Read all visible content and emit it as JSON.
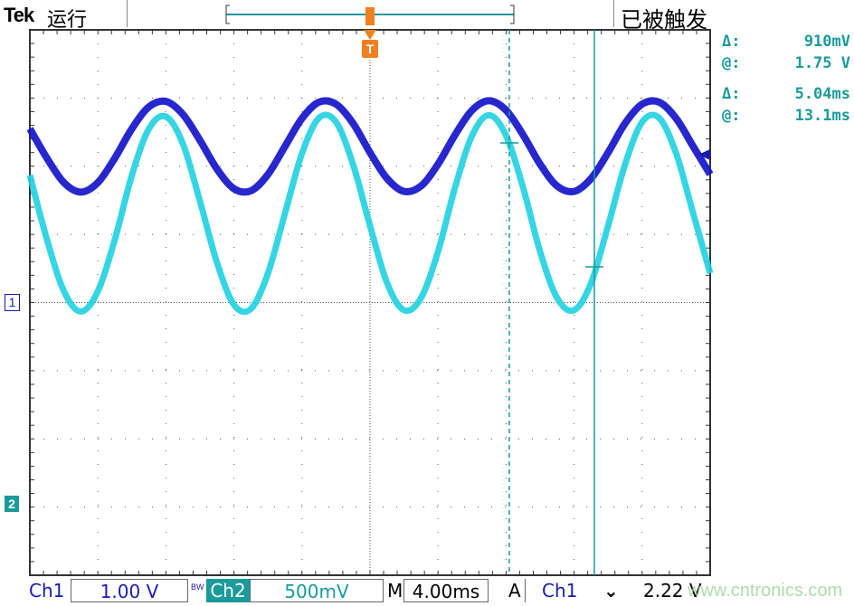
{
  "header": {
    "brand": "Tek",
    "run_state": "运行",
    "trigger_status": "已被触发",
    "trigger_marker": "T"
  },
  "cursor_readout": {
    "v_delta_label": "Δ:",
    "v_delta": "910mV",
    "v_at_label": "@:",
    "v_at": "1.75 V",
    "t_delta_label": "Δ:",
    "t_delta": "5.04ms",
    "t_at_label": "@:",
    "t_at": "13.1ms"
  },
  "footer": {
    "ch1_label": "Ch1",
    "ch1_scale": "1.00 V",
    "bw_label": "BW",
    "ch2_label": "Ch2",
    "ch2_scale": "500mV",
    "timebase_label": "M",
    "timebase": "4.00ms",
    "trigger_label": "A",
    "trigger_source": "Ch1",
    "trigger_slope": "falling",
    "trigger_slope_glyph": "⌄",
    "trigger_level": "2.22 V"
  },
  "markers": {
    "ch1": "1",
    "ch2": "2"
  },
  "watermark": "www.cntronics.com",
  "colors": {
    "ch1": "#1010c8",
    "ch2": "#20d0e0",
    "cursor": "#1a9a9a",
    "trigger": "#f08020",
    "label_teal": "#1a9a9a"
  },
  "chart_data": {
    "type": "line",
    "xlabel": "",
    "ylabel": "",
    "x_unit": "ms",
    "xlim": [
      -20,
      20
    ],
    "grid": true,
    "divisions": {
      "horizontal": 10,
      "vertical": 8
    },
    "x": [
      -20,
      -19,
      -18,
      -17,
      -16,
      -15,
      -14,
      -13,
      -12,
      -11,
      -10,
      -9,
      -8,
      -7,
      -6,
      -5,
      -4,
      -3,
      -2,
      -1,
      0,
      1,
      2,
      3,
      4,
      5,
      6,
      7,
      8,
      9,
      10,
      11,
      12,
      13,
      14,
      15,
      16,
      17,
      18,
      19,
      20
    ],
    "series": [
      {
        "name": "Ch1",
        "scale_v_per_div": 1.0,
        "color": "#1010c8",
        "values": [
          2.55,
          2.12,
          1.76,
          1.62,
          1.76,
          2.12,
          2.55,
          2.87,
          2.95,
          2.76,
          2.38,
          1.96,
          1.67,
          1.64,
          1.88,
          2.29,
          2.7,
          2.94,
          2.91,
          2.63,
          2.2,
          1.82,
          1.63,
          1.71,
          2.03,
          2.46,
          2.82,
          2.96,
          2.82,
          2.46,
          2.03,
          1.71,
          1.63,
          1.82,
          2.2,
          2.63,
          2.91,
          2.94,
          2.7,
          2.29,
          1.88
        ]
      },
      {
        "name": "Ch2",
        "scale_v_per_div": 0.5,
        "color": "#20d0e0",
        "values": [
          2.41,
          1.94,
          1.56,
          1.41,
          1.56,
          1.94,
          2.41,
          2.75,
          2.84,
          2.64,
          2.22,
          1.77,
          1.46,
          1.43,
          1.69,
          2.13,
          2.57,
          2.83,
          2.8,
          2.49,
          2.04,
          1.62,
          1.42,
          1.51,
          1.85,
          2.32,
          2.7,
          2.85,
          2.7,
          2.32,
          1.85,
          1.51,
          1.42,
          1.62,
          2.04,
          2.49,
          2.8,
          2.83,
          2.57,
          2.13,
          1.69
        ]
      }
    ]
  }
}
